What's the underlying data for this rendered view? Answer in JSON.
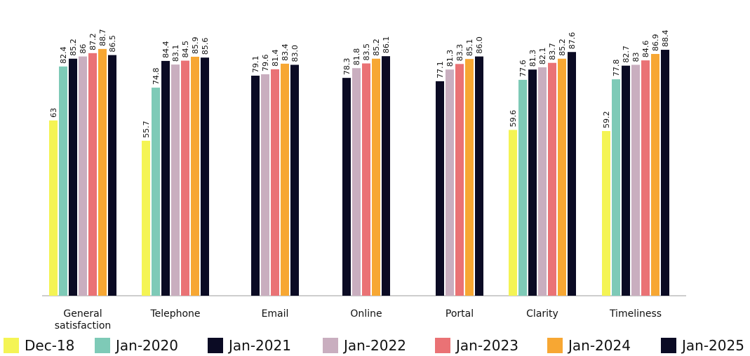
{
  "chart_data": {
    "type": "bar",
    "categories": [
      "General satisfaction",
      "Telephone",
      "Email",
      "Online",
      "Portal",
      "Clarity",
      "Timeliness"
    ],
    "category_lines": [
      [
        "General",
        "satisfaction"
      ],
      [
        "Telephone"
      ],
      [
        "Email"
      ],
      [
        "Online"
      ],
      [
        "Portal"
      ],
      [
        "Clarity"
      ],
      [
        "Timeliness"
      ]
    ],
    "series": [
      {
        "name": "Dec-18",
        "color": "#f4f454",
        "values": [
          63,
          55.7,
          null,
          null,
          null,
          59.6,
          59.2
        ],
        "labels": [
          "63",
          "55.7",
          null,
          null,
          null,
          "59.6",
          "59.2"
        ]
      },
      {
        "name": "Jan-2020",
        "color": "#7ecab7",
        "values": [
          82.4,
          74.8,
          null,
          null,
          null,
          77.6,
          77.8
        ],
        "labels": [
          "82.4",
          "74.8",
          null,
          null,
          null,
          "77.6",
          "77.8"
        ]
      },
      {
        "name": "Jan-2021",
        "color": "#0b0b24",
        "values": [
          85.2,
          84.4,
          79.1,
          78.3,
          77.1,
          81.3,
          82.7
        ],
        "labels": [
          "85.2",
          "84.4",
          "79.1",
          "78.3",
          "77.1",
          "81.3",
          "82.7"
        ]
      },
      {
        "name": "Jan-2022",
        "color": "#c9aebf",
        "values": [
          86,
          83.1,
          79.6,
          81.8,
          81.3,
          82.1,
          83
        ],
        "labels": [
          "86",
          "83.1",
          "79.6",
          "81.8",
          "81.3",
          "82.1",
          "83"
        ]
      },
      {
        "name": "Jan-2023",
        "color": "#ea7275",
        "values": [
          87.2,
          84.5,
          81.4,
          83.5,
          83.3,
          83.7,
          84.6
        ],
        "labels": [
          "87.2",
          "84.5",
          "81.4",
          "83.5",
          "83.3",
          "83.7",
          "84.6"
        ]
      },
      {
        "name": "Jan-2024",
        "color": "#f7a733",
        "values": [
          88.7,
          85.9,
          83.4,
          85.2,
          85.1,
          85.2,
          86.9
        ],
        "labels": [
          "88.7",
          "85.9",
          "83.4",
          "85.2",
          "85.1",
          "85.2",
          "86.9"
        ]
      },
      {
        "name": "Jan-2025",
        "color": "#0b0b24",
        "values": [
          86.5,
          85.6,
          83.0,
          86.1,
          86.0,
          87.6,
          88.4
        ],
        "labels": [
          "86.5",
          "85.6",
          "83.0",
          "86.1",
          "86.0",
          "87.6",
          "88.4"
        ]
      }
    ],
    "ylim": [
      0,
      100
    ],
    "grid": false,
    "legend_position": "bottom",
    "axis_color": "#bdbdbd"
  }
}
